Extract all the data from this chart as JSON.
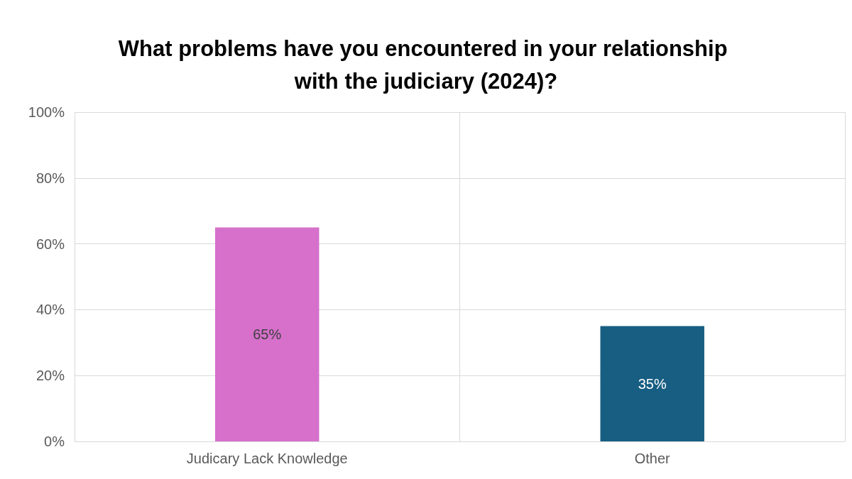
{
  "chart_data": {
    "type": "bar",
    "title": "What problems have you encountered in your relationship with the judiciary (2024)?",
    "categories": [
      "Judicary Lack Knowledge",
      "Other"
    ],
    "values": [
      65,
      35
    ],
    "colors": [
      "#d670cb",
      "#175e82"
    ],
    "value_labels": [
      "65%",
      "35%"
    ],
    "ylim": [
      0,
      100
    ],
    "yticks": [
      {
        "value": 0,
        "label": "0%"
      },
      {
        "value": 20,
        "label": "20%"
      },
      {
        "value": 40,
        "label": "40%"
      },
      {
        "value": 60,
        "label": "60%"
      },
      {
        "value": 80,
        "label": "80%"
      },
      {
        "value": 100,
        "label": "100%"
      }
    ],
    "grid": true
  }
}
